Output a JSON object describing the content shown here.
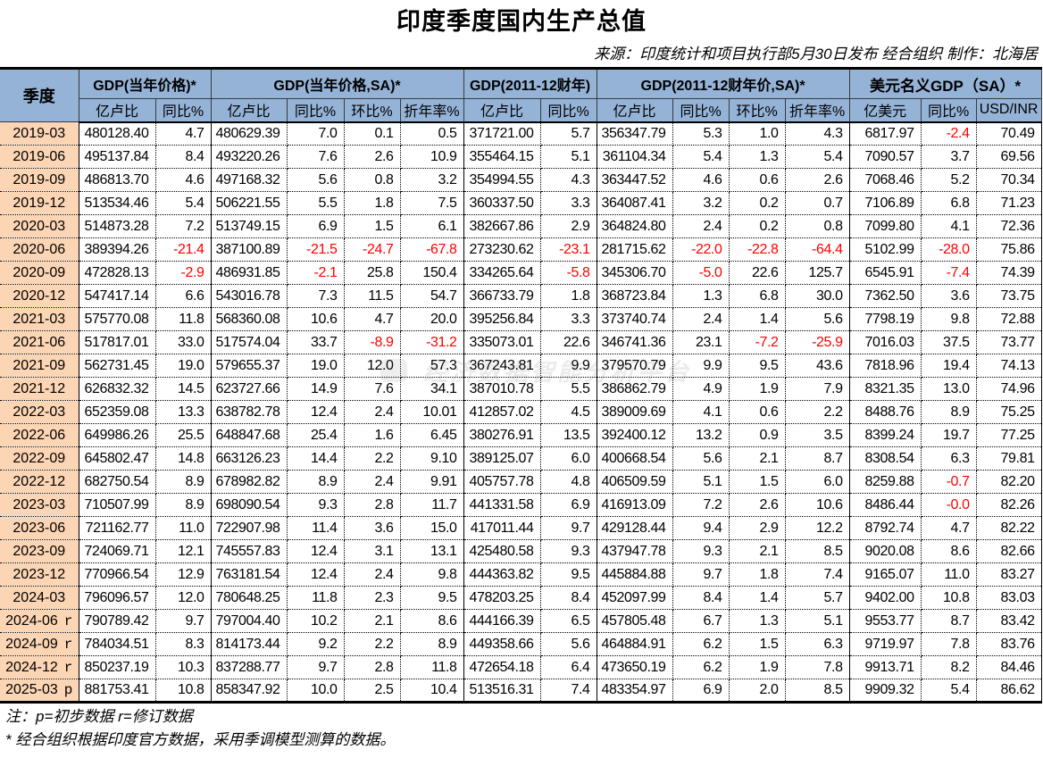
{
  "title": "印度季度国内生产总值",
  "source": "来源：印度统计和项目执行部5月30日发布 经合组织 制作：北海居",
  "colors": {
    "header_bg": "#95b3d7",
    "quarter_bg": "#fcd5b4",
    "negative": "#ff0000"
  },
  "table": {
    "corner_header": "季度",
    "groups": [
      {
        "label": "GDP(当年价格)*"
      },
      {
        "label": "GDP(当年价格,SA)*"
      },
      {
        "label": "GDP(2011-12财年)"
      },
      {
        "label": "GDP(2011-12财年价,SA)*"
      },
      {
        "label": "美元名义GDP（SA）*"
      }
    ],
    "subheaders": [
      "亿卢比",
      "同比%",
      "亿卢比",
      "同比%",
      "环比%",
      "折年率%",
      "亿卢比",
      "同比%",
      "亿卢比",
      "同比%",
      "环比%",
      "折年率%",
      "亿美元",
      "同比%",
      "USD/INR"
    ],
    "rows": [
      {
        "quarter": "2019-03",
        "flag": "",
        "values": [
          "480128.40",
          "4.7",
          "480629.39",
          "7.0",
          "0.1",
          "0.5",
          "371721.00",
          "5.7",
          "356347.79",
          "5.3",
          "1.0",
          "4.3",
          "6817.97",
          "-2.4",
          "70.49"
        ]
      },
      {
        "quarter": "2019-06",
        "flag": "",
        "values": [
          "495137.84",
          "8.4",
          "493220.26",
          "7.6",
          "2.6",
          "10.9",
          "355464.15",
          "5.1",
          "361104.34",
          "5.4",
          "1.3",
          "5.4",
          "7090.57",
          "3.7",
          "69.56"
        ]
      },
      {
        "quarter": "2019-09",
        "flag": "",
        "values": [
          "486813.70",
          "4.6",
          "497168.32",
          "5.6",
          "0.8",
          "3.2",
          "354994.55",
          "4.3",
          "363447.52",
          "4.6",
          "0.6",
          "2.6",
          "7068.46",
          "5.2",
          "70.34"
        ]
      },
      {
        "quarter": "2019-12",
        "flag": "",
        "values": [
          "513534.46",
          "5.4",
          "506221.55",
          "5.5",
          "1.8",
          "7.5",
          "360337.50",
          "3.3",
          "364087.41",
          "3.2",
          "0.2",
          "0.7",
          "7106.89",
          "6.8",
          "71.23"
        ]
      },
      {
        "quarter": "2020-03",
        "flag": "",
        "values": [
          "514873.28",
          "7.2",
          "513749.15",
          "6.9",
          "1.5",
          "6.1",
          "382667.86",
          "2.9",
          "364824.80",
          "2.4",
          "0.2",
          "0.8",
          "7099.80",
          "4.1",
          "72.36"
        ]
      },
      {
        "quarter": "2020-06",
        "flag": "",
        "values": [
          "389394.26",
          "-21.4",
          "387100.89",
          "-21.5",
          "-24.7",
          "-67.8",
          "273230.62",
          "-23.1",
          "281715.62",
          "-22.0",
          "-22.8",
          "-64.4",
          "5102.99",
          "-28.0",
          "75.86"
        ]
      },
      {
        "quarter": "2020-09",
        "flag": "",
        "values": [
          "472828.13",
          "-2.9",
          "486931.85",
          "-2.1",
          "25.8",
          "150.4",
          "334265.64",
          "-5.8",
          "345306.70",
          "-5.0",
          "22.6",
          "125.7",
          "6545.91",
          "-7.4",
          "74.39"
        ]
      },
      {
        "quarter": "2020-12",
        "flag": "",
        "values": [
          "547417.14",
          "6.6",
          "543016.78",
          "7.3",
          "11.5",
          "54.7",
          "366733.79",
          "1.8",
          "368723.84",
          "1.3",
          "6.8",
          "30.0",
          "7362.50",
          "3.6",
          "73.75"
        ]
      },
      {
        "quarter": "2021-03",
        "flag": "",
        "values": [
          "575770.08",
          "11.8",
          "568360.08",
          "10.6",
          "4.7",
          "20.0",
          "395256.84",
          "3.3",
          "373740.74",
          "2.4",
          "1.4",
          "5.6",
          "7798.19",
          "9.8",
          "72.88"
        ]
      },
      {
        "quarter": "2021-06",
        "flag": "",
        "values": [
          "517817.01",
          "33.0",
          "517574.04",
          "33.7",
          "-8.9",
          "-31.2",
          "335073.01",
          "22.6",
          "346741.36",
          "23.1",
          "-7.2",
          "-25.9",
          "7016.03",
          "37.5",
          "73.77"
        ]
      },
      {
        "quarter": "2021-09",
        "flag": "",
        "values": [
          "562731.45",
          "19.0",
          "579655.37",
          "19.0",
          "12.0",
          "57.3",
          "367243.81",
          "9.9",
          "379570.79",
          "9.9",
          "9.5",
          "43.6",
          "7818.96",
          "19.4",
          "74.13"
        ]
      },
      {
        "quarter": "2021-12",
        "flag": "",
        "values": [
          "626832.32",
          "14.5",
          "623727.66",
          "14.9",
          "7.6",
          "34.1",
          "387010.78",
          "5.5",
          "386862.79",
          "4.9",
          "1.9",
          "7.9",
          "8321.35",
          "13.0",
          "74.96"
        ]
      },
      {
        "quarter": "2022-03",
        "flag": "",
        "values": [
          "652359.08",
          "13.3",
          "638782.78",
          "12.4",
          "2.4",
          "10.01",
          "412857.02",
          "4.5",
          "389009.69",
          "4.1",
          "0.6",
          "2.2",
          "8488.76",
          "8.9",
          "75.25"
        ]
      },
      {
        "quarter": "2022-06",
        "flag": "",
        "values": [
          "649986.26",
          "25.5",
          "648847.68",
          "25.4",
          "1.6",
          "6.45",
          "380276.91",
          "13.5",
          "392400.12",
          "13.2",
          "0.9",
          "3.5",
          "8399.24",
          "19.7",
          "77.25"
        ]
      },
      {
        "quarter": "2022-09",
        "flag": "",
        "values": [
          "645802.47",
          "14.8",
          "663126.23",
          "14.4",
          "2.2",
          "9.10",
          "389125.07",
          "6.0",
          "400668.54",
          "5.6",
          "2.1",
          "8.7",
          "8308.54",
          "6.3",
          "79.81"
        ]
      },
      {
        "quarter": "2022-12",
        "flag": "",
        "values": [
          "682750.54",
          "8.9",
          "678982.82",
          "8.9",
          "2.4",
          "9.91",
          "405757.78",
          "4.8",
          "406509.59",
          "5.1",
          "1.5",
          "6.0",
          "8259.88",
          "-0.7",
          "82.20"
        ]
      },
      {
        "quarter": "2023-03",
        "flag": "",
        "values": [
          "710507.99",
          "8.9",
          "698090.54",
          "9.3",
          "2.8",
          "11.7",
          "441331.58",
          "6.9",
          "416913.09",
          "7.2",
          "2.6",
          "10.6",
          "8486.44",
          "-0.0",
          "82.26"
        ]
      },
      {
        "quarter": "2023-06",
        "flag": "",
        "values": [
          "721162.77",
          "11.0",
          "722907.98",
          "11.4",
          "3.6",
          "15.0",
          "417011.44",
          "9.7",
          "429128.44",
          "9.4",
          "2.9",
          "12.2",
          "8792.74",
          "4.7",
          "82.22"
        ]
      },
      {
        "quarter": "2023-09",
        "flag": "",
        "values": [
          "724069.71",
          "12.1",
          "745557.83",
          "12.4",
          "3.1",
          "13.1",
          "425480.58",
          "9.3",
          "437947.78",
          "9.3",
          "2.1",
          "8.5",
          "9020.08",
          "8.6",
          "82.66"
        ]
      },
      {
        "quarter": "2023-12",
        "flag": "",
        "values": [
          "770966.54",
          "12.9",
          "763181.54",
          "12.4",
          "2.4",
          "9.8",
          "444363.82",
          "9.5",
          "445884.88",
          "9.7",
          "1.8",
          "7.4",
          "9165.07",
          "11.0",
          "83.27"
        ]
      },
      {
        "quarter": "2024-03",
        "flag": "",
        "values": [
          "796096.57",
          "12.0",
          "780648.25",
          "11.8",
          "2.3",
          "9.5",
          "478203.25",
          "8.4",
          "452097.99",
          "8.4",
          "1.4",
          "5.7",
          "9402.00",
          "10.8",
          "83.03"
        ]
      },
      {
        "quarter": "2024-06",
        "flag": "r",
        "values": [
          "790789.42",
          "9.7",
          "797004.40",
          "10.2",
          "2.1",
          "8.6",
          "444166.39",
          "6.5",
          "457805.48",
          "6.7",
          "1.3",
          "5.1",
          "9553.77",
          "8.7",
          "83.42"
        ]
      },
      {
        "quarter": "2024-09",
        "flag": "r",
        "values": [
          "784034.51",
          "8.3",
          "814173.44",
          "9.2",
          "2.2",
          "8.9",
          "449358.66",
          "5.6",
          "464884.91",
          "6.2",
          "1.5",
          "6.3",
          "9719.97",
          "7.8",
          "83.76"
        ]
      },
      {
        "quarter": "2024-12",
        "flag": "r",
        "values": [
          "850237.19",
          "10.3",
          "837288.77",
          "9.7",
          "2.8",
          "11.8",
          "472654.18",
          "6.4",
          "473650.19",
          "6.2",
          "1.9",
          "7.8",
          "9913.71",
          "8.2",
          "84.46"
        ]
      },
      {
        "quarter": "2025-03",
        "flag": "p",
        "values": [
          "881753.41",
          "10.8",
          "858347.92",
          "10.0",
          "2.5",
          "10.4",
          "513516.31",
          "7.4",
          "483354.97",
          "6.9",
          "2.0",
          "8.5",
          "9909.32",
          "5.4",
          "86.62"
        ]
      }
    ]
  },
  "notes": [
    "注：p=初步数据 r=修订数据",
    "* 经合组织根据印度官方数据，采用季调模型测算的数据。"
  ],
  "watermark": {
    "text": "经济数据智能分析平台"
  },
  "chart_data": {
    "type": "table",
    "title": "印度季度国内生产总值",
    "subtitle": "来源：印度统计和项目执行部5月30日发布 经合组织 制作：北海居",
    "row_header": "季度",
    "column_groups": [
      {
        "label": "GDP(当年价格)*",
        "columns": [
          "亿卢比",
          "同比%"
        ]
      },
      {
        "label": "GDP(当年价格,SA)*",
        "columns": [
          "亿卢比",
          "同比%",
          "环比%",
          "折年率%"
        ]
      },
      {
        "label": "GDP(2011-12财年)",
        "columns": [
          "亿卢比",
          "同比%"
        ]
      },
      {
        "label": "GDP(2011-12财年价,SA)*",
        "columns": [
          "亿卢比",
          "同比%",
          "环比%",
          "折年率%"
        ]
      },
      {
        "label": "美元名义GDP（SA）*",
        "columns": [
          "亿美元",
          "同比%",
          "USD/INR"
        ]
      }
    ],
    "row_labels": [
      "2019-03",
      "2019-06",
      "2019-09",
      "2019-12",
      "2020-03",
      "2020-06",
      "2020-09",
      "2020-12",
      "2021-03",
      "2021-06",
      "2021-09",
      "2021-12",
      "2022-03",
      "2022-06",
      "2022-09",
      "2022-12",
      "2023-03",
      "2023-06",
      "2023-09",
      "2023-12",
      "2024-03",
      "2024-06 r",
      "2024-09 r",
      "2024-12 r",
      "2025-03 p"
    ],
    "values": [
      [
        480128.4,
        4.7,
        480629.39,
        7.0,
        0.1,
        0.5,
        371721.0,
        5.7,
        356347.79,
        5.3,
        1.0,
        4.3,
        6817.97,
        -2.4,
        70.49
      ],
      [
        495137.84,
        8.4,
        493220.26,
        7.6,
        2.6,
        10.9,
        355464.15,
        5.1,
        361104.34,
        5.4,
        1.3,
        5.4,
        7090.57,
        3.7,
        69.56
      ],
      [
        486813.7,
        4.6,
        497168.32,
        5.6,
        0.8,
        3.2,
        354994.55,
        4.3,
        363447.52,
        4.6,
        0.6,
        2.6,
        7068.46,
        5.2,
        70.34
      ],
      [
        513534.46,
        5.4,
        506221.55,
        5.5,
        1.8,
        7.5,
        360337.5,
        3.3,
        364087.41,
        3.2,
        0.2,
        0.7,
        7106.89,
        6.8,
        71.23
      ],
      [
        514873.28,
        7.2,
        513749.15,
        6.9,
        1.5,
        6.1,
        382667.86,
        2.9,
        364824.8,
        2.4,
        0.2,
        0.8,
        7099.8,
        4.1,
        72.36
      ],
      [
        389394.26,
        -21.4,
        387100.89,
        -21.5,
        -24.7,
        -67.8,
        273230.62,
        -23.1,
        281715.62,
        -22.0,
        -22.8,
        -64.4,
        5102.99,
        -28.0,
        75.86
      ],
      [
        472828.13,
        -2.9,
        486931.85,
        -2.1,
        25.8,
        150.4,
        334265.64,
        -5.8,
        345306.7,
        -5.0,
        22.6,
        125.7,
        6545.91,
        -7.4,
        74.39
      ],
      [
        547417.14,
        6.6,
        543016.78,
        7.3,
        11.5,
        54.7,
        366733.79,
        1.8,
        368723.84,
        1.3,
        6.8,
        30.0,
        7362.5,
        3.6,
        73.75
      ],
      [
        575770.08,
        11.8,
        568360.08,
        10.6,
        4.7,
        20.0,
        395256.84,
        3.3,
        373740.74,
        2.4,
        1.4,
        5.6,
        7798.19,
        9.8,
        72.88
      ],
      [
        517817.01,
        33.0,
        517574.04,
        33.7,
        -8.9,
        -31.2,
        335073.01,
        22.6,
        346741.36,
        23.1,
        -7.2,
        -25.9,
        7016.03,
        37.5,
        73.77
      ],
      [
        562731.45,
        19.0,
        579655.37,
        19.0,
        12.0,
        57.3,
        367243.81,
        9.9,
        379570.79,
        9.9,
        9.5,
        43.6,
        7818.96,
        19.4,
        74.13
      ],
      [
        626832.32,
        14.5,
        623727.66,
        14.9,
        7.6,
        34.1,
        387010.78,
        5.5,
        386862.79,
        4.9,
        1.9,
        7.9,
        8321.35,
        13.0,
        74.96
      ],
      [
        652359.08,
        13.3,
        638782.78,
        12.4,
        2.4,
        10.01,
        412857.02,
        4.5,
        389009.69,
        4.1,
        0.6,
        2.2,
        8488.76,
        8.9,
        75.25
      ],
      [
        649986.26,
        25.5,
        648847.68,
        25.4,
        1.6,
        6.45,
        380276.91,
        13.5,
        392400.12,
        13.2,
        0.9,
        3.5,
        8399.24,
        19.7,
        77.25
      ],
      [
        645802.47,
        14.8,
        663126.23,
        14.4,
        2.2,
        9.1,
        389125.07,
        6.0,
        400668.54,
        5.6,
        2.1,
        8.7,
        8308.54,
        6.3,
        79.81
      ],
      [
        682750.54,
        8.9,
        678982.82,
        8.9,
        2.4,
        9.91,
        405757.78,
        4.8,
        406509.59,
        5.1,
        1.5,
        6.0,
        8259.88,
        -0.7,
        82.2
      ],
      [
        710507.99,
        8.9,
        698090.54,
        9.3,
        2.8,
        11.7,
        441331.58,
        6.9,
        416913.09,
        7.2,
        2.6,
        10.6,
        8486.44,
        -0.0,
        82.26
      ],
      [
        721162.77,
        11.0,
        722907.98,
        11.4,
        3.6,
        15.0,
        417011.44,
        9.7,
        429128.44,
        9.4,
        2.9,
        12.2,
        8792.74,
        4.7,
        82.22
      ],
      [
        724069.71,
        12.1,
        745557.83,
        12.4,
        3.1,
        13.1,
        425480.58,
        9.3,
        437947.78,
        9.3,
        2.1,
        8.5,
        9020.08,
        8.6,
        82.66
      ],
      [
        770966.54,
        12.9,
        763181.54,
        12.4,
        2.4,
        9.8,
        444363.82,
        9.5,
        445884.88,
        9.7,
        1.8,
        7.4,
        9165.07,
        11.0,
        83.27
      ],
      [
        796096.57,
        12.0,
        780648.25,
        11.8,
        2.3,
        9.5,
        478203.25,
        8.4,
        452097.99,
        8.4,
        1.4,
        5.7,
        9402.0,
        10.8,
        83.03
      ],
      [
        790789.42,
        9.7,
        797004.4,
        10.2,
        2.1,
        8.6,
        444166.39,
        6.5,
        457805.48,
        6.7,
        1.3,
        5.1,
        9553.77,
        8.7,
        83.42
      ],
      [
        784034.51,
        8.3,
        814173.44,
        9.2,
        2.2,
        8.9,
        449358.66,
        5.6,
        464884.91,
        6.2,
        1.5,
        6.3,
        9719.97,
        7.8,
        83.76
      ],
      [
        850237.19,
        10.3,
        837288.77,
        9.7,
        2.8,
        11.8,
        472654.18,
        6.4,
        473650.19,
        6.2,
        1.9,
        7.8,
        9913.71,
        8.2,
        84.46
      ],
      [
        881753.41,
        10.8,
        858347.92,
        10.0,
        2.5,
        10.4,
        513516.31,
        7.4,
        483354.97,
        6.9,
        2.0,
        8.5,
        9909.32,
        5.4,
        86.62
      ]
    ],
    "notes": [
      "注：p=初步数据 r=修订数据",
      "* 经合组织根据印度官方数据，采用季调模型测算的数据。"
    ]
  }
}
